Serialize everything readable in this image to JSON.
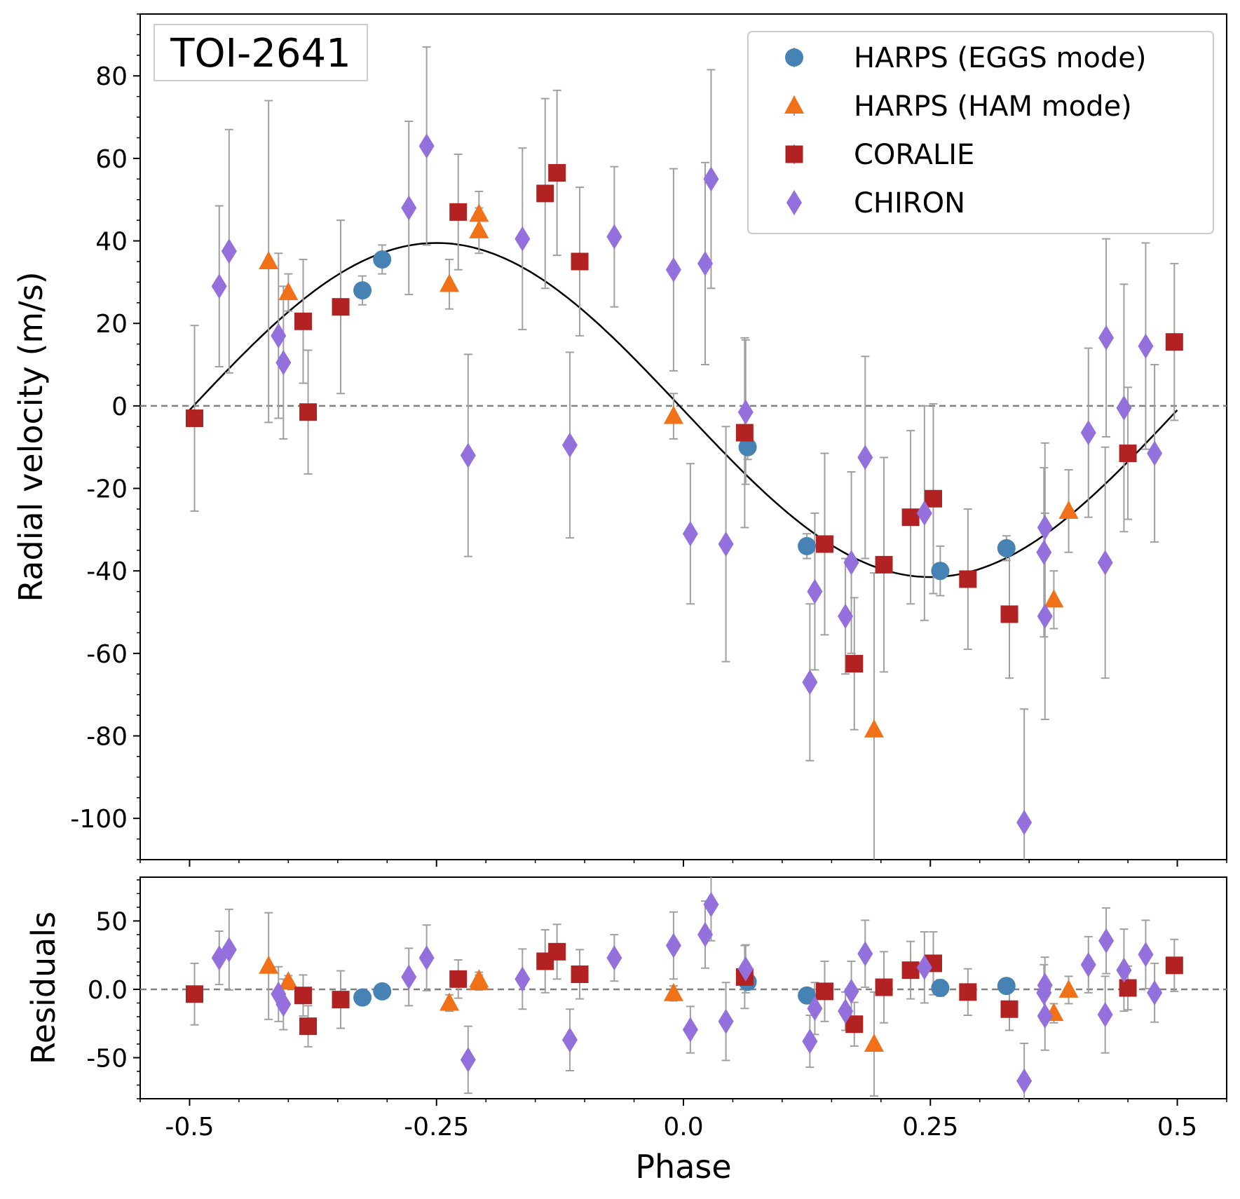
{
  "chart_data": {
    "type": "scatter",
    "title": "TOI-2641",
    "xlabel": "Phase",
    "main": {
      "ylabel": "Radial velocity (m/s)",
      "ylim": [
        -110,
        95
      ],
      "yticks": [
        80,
        60,
        40,
        20,
        0,
        -20,
        -40,
        -60,
        -80,
        -100
      ],
      "ytick_labels": [
        "80",
        "60",
        "40",
        "20",
        "0",
        "-20",
        "-40",
        "-60",
        "-80",
        "-100"
      ]
    },
    "residual": {
      "ylabel": "Residuals",
      "ylim": [
        -80,
        82
      ],
      "yticks": [
        50,
        0,
        -50
      ],
      "ytick_labels": [
        "50",
        "0.0",
        "-50"
      ]
    },
    "xlim": [
      -0.55,
      0.55
    ],
    "xticks": [
      -0.5,
      -0.25,
      0.0,
      0.25,
      0.5
    ],
    "xtick_labels": [
      "-0.5",
      "-0.25",
      "0.0",
      "0.25",
      "0.5"
    ],
    "model": {
      "type": "sine",
      "amplitude": 40.5,
      "offset": -1.0,
      "phase_of_maximum": -0.25
    },
    "zero_line": 0,
    "legend_position": "top-right",
    "series": [
      {
        "name": "HARPS (EGGS mode)",
        "label": "HARPS (EGGS mode)",
        "marker": "circle",
        "color": "#4682b4",
        "points": [
          [
            -0.325,
            28,
            3.5,
            -6,
            3.5
          ],
          [
            -0.305,
            35.5,
            3.5,
            -1.5,
            3.5
          ],
          [
            0.065,
            -10,
            3,
            5.5,
            3
          ],
          [
            0.125,
            -34,
            3,
            -4.5,
            3
          ],
          [
            0.26,
            -40,
            6,
            1,
            6
          ],
          [
            0.327,
            -34.5,
            3,
            2.5,
            3
          ]
        ]
      },
      {
        "name": "HARPS (HAM mode)",
        "label": "HARPS (HAM mode)",
        "marker": "triangle",
        "color": "#f07117",
        "points": [
          [
            -0.42,
            35,
            39,
            17,
            39
          ],
          [
            -0.4,
            27.5,
            4.5,
            5.5,
            4.5
          ],
          [
            -0.237,
            29.5,
            6,
            -10,
            6
          ],
          [
            -0.207,
            46.5,
            5.5,
            7,
            5.5
          ],
          [
            -0.207,
            42.5,
            5.5,
            5,
            5.5
          ],
          [
            -0.01,
            -2.5,
            5.5,
            -3,
            5.5
          ],
          [
            0.193,
            -78.5,
            38,
            -40,
            38
          ],
          [
            0.375,
            -47,
            7,
            -17.5,
            7
          ],
          [
            0.39,
            -25.5,
            10,
            -0.5,
            10
          ]
        ]
      },
      {
        "name": "CORALIE",
        "label": "CORALIE",
        "marker": "square",
        "color": "#b22222",
        "points": [
          [
            -0.495,
            -3,
            22.5,
            -3.5,
            22.5
          ],
          [
            -0.385,
            20.5,
            15,
            -4.5,
            15
          ],
          [
            -0.38,
            -1.5,
            15,
            -27,
            15
          ],
          [
            -0.347,
            24,
            21,
            -7.5,
            21
          ],
          [
            -0.228,
            47,
            14,
            7.5,
            14
          ],
          [
            -0.14,
            51.5,
            23,
            20.5,
            23
          ],
          [
            -0.128,
            56.5,
            20,
            27.5,
            20
          ],
          [
            -0.105,
            35,
            18,
            11,
            18
          ],
          [
            0.062,
            -6.5,
            23,
            9,
            23
          ],
          [
            0.143,
            -33.5,
            22,
            -1.5,
            22
          ],
          [
            0.173,
            -62.5,
            16,
            -25.5,
            16
          ],
          [
            0.203,
            -38.5,
            26,
            1.5,
            26
          ],
          [
            0.23,
            -27,
            21,
            14,
            21
          ],
          [
            0.253,
            -22.5,
            23,
            19,
            23
          ],
          [
            0.288,
            -42,
            17,
            -2,
            17
          ],
          [
            0.33,
            -50.5,
            15.5,
            -14.5,
            15.5
          ],
          [
            0.45,
            -11.5,
            16,
            1,
            16
          ],
          [
            0.497,
            15.5,
            19,
            17.5,
            19
          ]
        ]
      },
      {
        "name": "CHIRON",
        "label": "CHIRON",
        "marker": "diamond",
        "color": "#9370db",
        "points": [
          [
            -0.47,
            29,
            19.5,
            23,
            19.5
          ],
          [
            -0.46,
            37.5,
            29.5,
            29,
            29.5
          ],
          [
            -0.41,
            17,
            20,
            -3.5,
            20
          ],
          [
            -0.405,
            10.5,
            18.5,
            -11,
            18.5
          ],
          [
            -0.278,
            48,
            21,
            9,
            21
          ],
          [
            -0.26,
            63,
            24,
            23,
            24
          ],
          [
            -0.218,
            -12,
            24.5,
            -51.5,
            24.5
          ],
          [
            -0.163,
            40.5,
            22,
            7.5,
            22
          ],
          [
            -0.115,
            -9.5,
            22.5,
            -37,
            22.5
          ],
          [
            -0.07,
            41,
            17,
            23,
            17
          ],
          [
            -0.01,
            33,
            24.5,
            32,
            24.5
          ],
          [
            0.007,
            -31,
            17,
            -29.5,
            17
          ],
          [
            0.022,
            34.5,
            24.5,
            40,
            24.5
          ],
          [
            0.028,
            55,
            26.5,
            62,
            26.5
          ],
          [
            0.043,
            -33.5,
            28.5,
            -23.5,
            28.5
          ],
          [
            0.063,
            -1.5,
            17.5,
            15,
            17.5
          ],
          [
            0.128,
            -67,
            19,
            -38,
            19
          ],
          [
            0.133,
            -45,
            19,
            -14,
            19
          ],
          [
            0.164,
            -51,
            14,
            -16,
            14
          ],
          [
            0.17,
            -38,
            22,
            -1.5,
            22
          ],
          [
            0.184,
            -12.5,
            24.5,
            26,
            24.5
          ],
          [
            0.244,
            -26,
            26,
            16,
            26
          ],
          [
            0.345,
            -101,
            27.5,
            -67,
            27.5
          ],
          [
            0.366,
            -29.5,
            20.5,
            3,
            20.5
          ],
          [
            0.365,
            -35.5,
            20.5,
            -2.5,
            20.5
          ],
          [
            0.366,
            -51,
            25,
            -19.5,
            25
          ],
          [
            0.41,
            -6.5,
            20.5,
            18,
            20.5
          ],
          [
            0.427,
            -38,
            28,
            -18.5,
            28
          ],
          [
            0.428,
            16.5,
            24,
            35.5,
            24
          ],
          [
            0.446,
            -0.5,
            30,
            14,
            30
          ],
          [
            0.468,
            14.5,
            25,
            25.5,
            25
          ],
          [
            0.477,
            -11.5,
            21.5,
            -2.5,
            21.5
          ]
        ]
      }
    ]
  }
}
